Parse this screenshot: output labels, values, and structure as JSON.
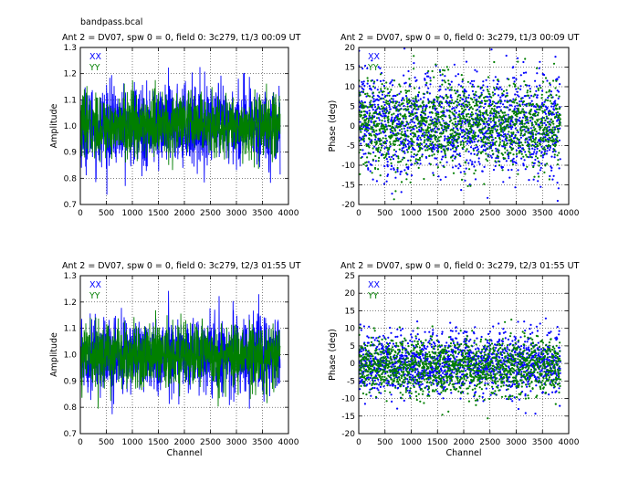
{
  "figure_title": "bandpass.bcal",
  "colors": {
    "XX": "#0000ff",
    "YY": "#007f00"
  },
  "chart_data": [
    {
      "type": "line",
      "title": "Ant 2 = DV07,  spw 0 = 0,  field 0: 3c279,  t1/3  00:09 UT",
      "xlabel": "",
      "ylabel": "Amplitude",
      "xlim": [
        0,
        4000
      ],
      "ylim": [
        0.7,
        1.3
      ],
      "xticks": [
        "0",
        "500",
        "1000",
        "1500",
        "2000",
        "2500",
        "3000",
        "3500",
        "4000"
      ],
      "yticks": [
        "0.7",
        "0.8",
        "0.9",
        "1.0",
        "1.1",
        "1.2",
        "1.3"
      ],
      "grid": true,
      "legend": [
        "XX",
        "YY"
      ],
      "series": [
        {
          "name": "XX",
          "center": 1.0,
          "spread": 0.075,
          "x_range": [
            0,
            3840
          ],
          "n": 1100
        },
        {
          "name": "YY",
          "center": 1.0,
          "spread": 0.06,
          "x_range": [
            0,
            3840
          ],
          "n": 1100
        }
      ]
    },
    {
      "type": "scatter",
      "title": "Ant 2 = DV07,  spw 0 = 0,  field 0: 3c279,  t1/3  00:09 UT",
      "xlabel": "",
      "ylabel": "Phase (deg)",
      "xlim": [
        0,
        4000
      ],
      "ylim": [
        -20,
        20
      ],
      "xticks": [
        "0",
        "500",
        "1000",
        "1500",
        "2000",
        "2500",
        "3000",
        "3500",
        "4000"
      ],
      "yticks": [
        "-20",
        "-15",
        "-10",
        "-5",
        "0",
        "5",
        "10",
        "15",
        "20"
      ],
      "grid": true,
      "legend": [
        "XX",
        "YY"
      ],
      "series": [
        {
          "name": "XX",
          "center": 0,
          "spread": 6.5,
          "x_range": [
            0,
            3840
          ],
          "n": 1500
        },
        {
          "name": "YY",
          "center": 0,
          "spread": 5.5,
          "x_range": [
            0,
            3840
          ],
          "n": 1500
        }
      ]
    },
    {
      "type": "line",
      "title": "Ant 2 = DV07,  spw 0 = 0,  field 0: 3c279,  t2/3  01:55 UT",
      "xlabel": "Channel",
      "ylabel": "Amplitude",
      "xlim": [
        0,
        4000
      ],
      "ylim": [
        0.7,
        1.3
      ],
      "xticks": [
        "0",
        "500",
        "1000",
        "1500",
        "2000",
        "2500",
        "3000",
        "3500",
        "4000"
      ],
      "yticks": [
        "0.7",
        "0.8",
        "0.9",
        "1.0",
        "1.1",
        "1.2",
        "1.3"
      ],
      "grid": true,
      "legend": [
        "XX",
        "YY"
      ],
      "series": [
        {
          "name": "XX",
          "center": 1.0,
          "spread": 0.07,
          "x_range": [
            0,
            3840
          ],
          "n": 1100
        },
        {
          "name": "YY",
          "center": 1.0,
          "spread": 0.06,
          "x_range": [
            0,
            3840
          ],
          "n": 1100
        }
      ]
    },
    {
      "type": "scatter",
      "title": "Ant 2 = DV07,  spw 0 = 0,  field 0: 3c279,  t2/3  01:55 UT",
      "xlabel": "Channel",
      "ylabel": "Phase (deg)",
      "xlim": [
        0,
        4000
      ],
      "ylim": [
        -20,
        25
      ],
      "xticks": [
        "0",
        "500",
        "1000",
        "1500",
        "2000",
        "2500",
        "3000",
        "3500",
        "4000"
      ],
      "yticks": [
        "-20",
        "-15",
        "-10",
        "-5",
        "0",
        "5",
        "10",
        "15",
        "20",
        "25"
      ],
      "grid": true,
      "legend": [
        "XX",
        "YY"
      ],
      "series": [
        {
          "name": "XX",
          "center": 0,
          "spread": 4.5,
          "x_range": [
            0,
            3840
          ],
          "n": 1500
        },
        {
          "name": "YY",
          "center": -1,
          "spread": 4.0,
          "x_range": [
            0,
            3840
          ],
          "n": 1500
        }
      ]
    }
  ]
}
